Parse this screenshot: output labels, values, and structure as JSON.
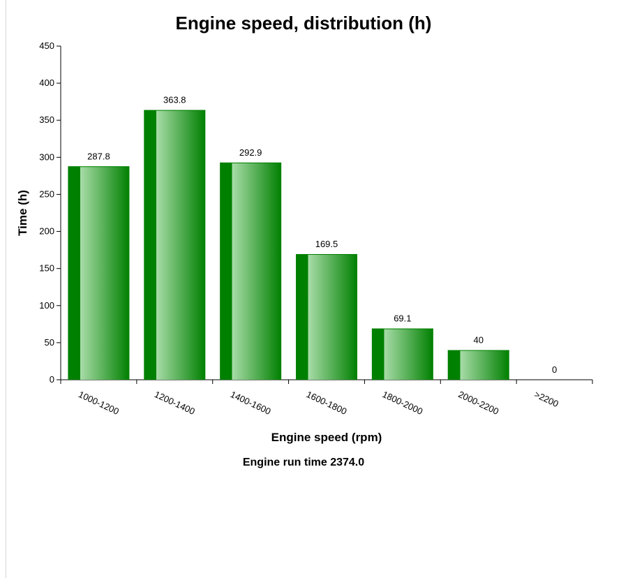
{
  "chart_data": {
    "type": "bar",
    "title": "Engine speed, distribution (h)",
    "xlabel": "Engine speed (rpm)",
    "ylabel": "Time (h)",
    "categories": [
      "1000-1200",
      "1200-1400",
      "1400-1600",
      "1600-1800",
      "1800-2000",
      "2000-2200",
      ">2200"
    ],
    "values": [
      287.8,
      363.8,
      292.9,
      169.5,
      69.1,
      40,
      0
    ],
    "data_labels": [
      "287.8",
      "363.8",
      "292.9",
      "169.5",
      "69.1",
      "40",
      "0"
    ],
    "ylim": [
      0,
      450
    ],
    "yticks": [
      0,
      50,
      100,
      150,
      200,
      250,
      300,
      350,
      400,
      450
    ],
    "grid": false,
    "legend": "none",
    "bar_color_dark": "#008000",
    "bar_color_light": "#a8dca8"
  },
  "footer": {
    "run_time": "Engine run time 2374.0"
  }
}
